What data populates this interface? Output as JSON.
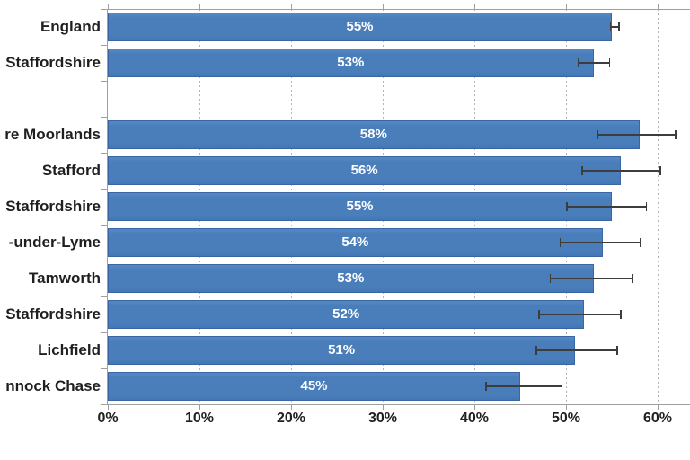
{
  "chart_data": {
    "type": "bar",
    "orientation": "horizontal",
    "title": "",
    "xlabel": "",
    "ylabel": "",
    "x_axis": {
      "tick_labels": [
        "0%",
        "10%",
        "20%",
        "30%",
        "40%",
        "50%",
        "60%"
      ],
      "tick_values": [
        0,
        10,
        20,
        30,
        40,
        50,
        60
      ],
      "visible_max": 63.5,
      "unit": "%"
    },
    "grid": {
      "style": "dotted-vertical",
      "interval": 10
    },
    "legend": "none",
    "error_bars": true,
    "colors": {
      "bar_fill": "#4a7ebb",
      "bar_border": "#3a67a3",
      "value_label": "#ffffff",
      "error_bar": "#3d3d3d",
      "axis_line": "#9f9f9f",
      "axis_text": "#1f1f1f",
      "gridline": "#b4b4b4"
    },
    "rows": [
      {
        "label": "England",
        "value": 55,
        "value_label": "55%",
        "error_low": 54.8,
        "error_high": 55.8,
        "spacer": false
      },
      {
        "label": "Staffordshire",
        "value": 53,
        "value_label": "53%",
        "error_low": 51.3,
        "error_high": 54.8,
        "spacer": false
      },
      {
        "label": "",
        "value": null,
        "value_label": "",
        "error_low": null,
        "error_high": null,
        "spacer": true
      },
      {
        "label": "re Moorlands",
        "value": 58,
        "value_label": "58%",
        "error_low": 53.4,
        "error_high": 62.0,
        "spacer": false
      },
      {
        "label": "Stafford",
        "value": 56,
        "value_label": "56%",
        "error_low": 51.7,
        "error_high": 60.3,
        "spacer": false
      },
      {
        "label": "Staffordshire",
        "value": 55,
        "value_label": "55%",
        "error_low": 50.0,
        "error_high": 58.8,
        "spacer": false
      },
      {
        "label": "-under-Lyme",
        "value": 54,
        "value_label": "54%",
        "error_low": 49.3,
        "error_high": 58.1,
        "spacer": false
      },
      {
        "label": "Tamworth",
        "value": 53,
        "value_label": "53%",
        "error_low": 48.2,
        "error_high": 57.3,
        "spacer": false
      },
      {
        "label": "Staffordshire",
        "value": 52,
        "value_label": "52%",
        "error_low": 47.0,
        "error_high": 56.0,
        "spacer": false
      },
      {
        "label": "Lichfield",
        "value": 51,
        "value_label": "51%",
        "error_low": 46.7,
        "error_high": 55.6,
        "spacer": false
      },
      {
        "label": "nnock Chase",
        "value": 45,
        "value_label": "45%",
        "error_low": 41.2,
        "error_high": 49.6,
        "spacer": false
      }
    ]
  }
}
